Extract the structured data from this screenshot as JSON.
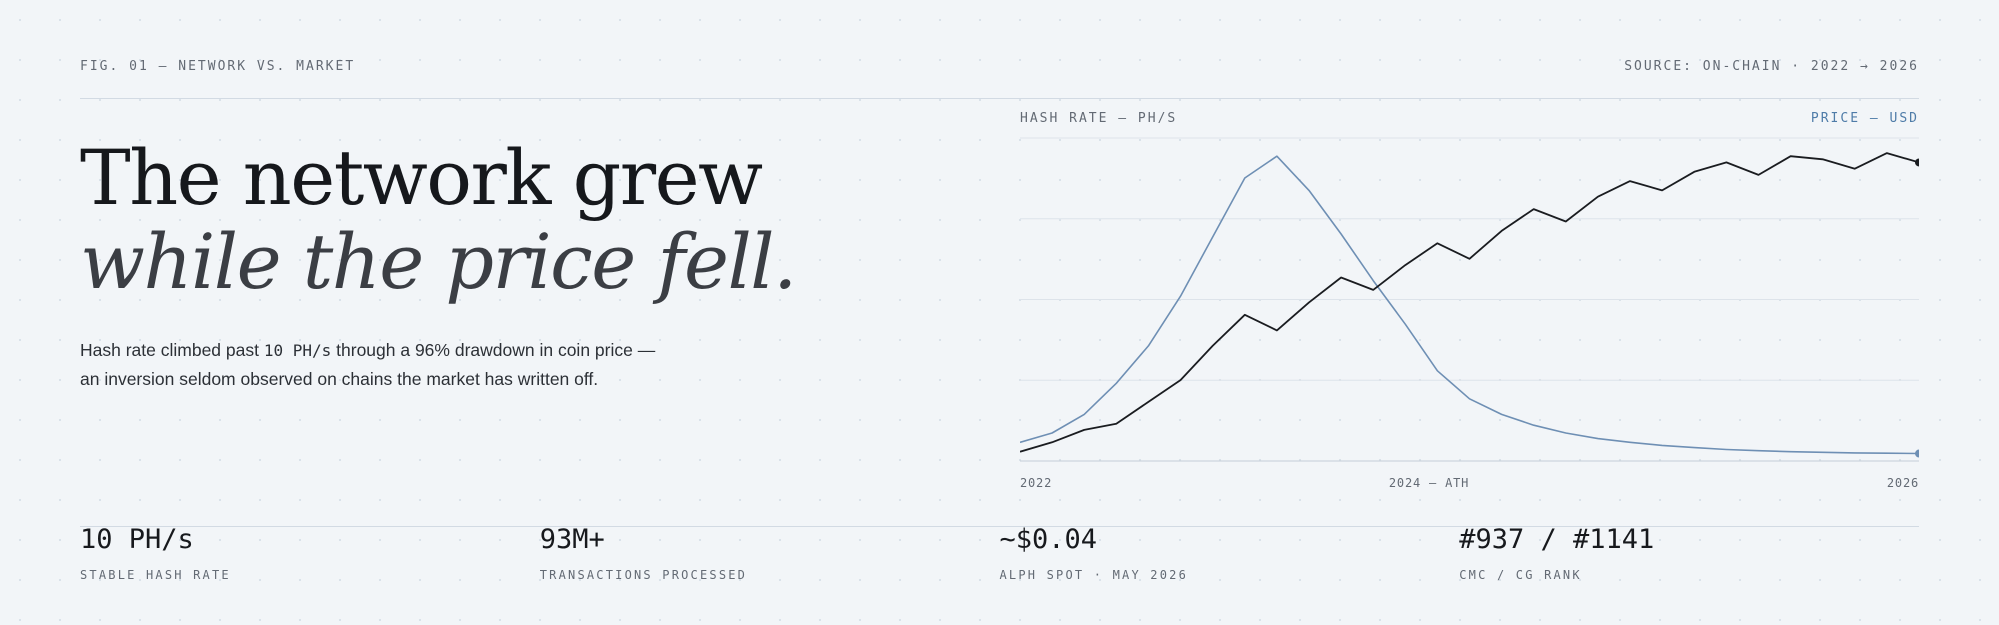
{
  "header": {
    "figure_label": "FIG. 01 — NETWORK VS. MARKET",
    "source_label": "SOURCE: ON-CHAIN · 2022 → 2026"
  },
  "headline": {
    "line1": "The network grew",
    "line2": "while the price fell."
  },
  "lede": {
    "part1": "Hash rate climbed past ",
    "highlight": "10 PH/s",
    "part2": " through a 96% drawdown in coin price — an inversion seldom observed on chains the market has written off."
  },
  "chart_data": {
    "type": "line",
    "left_axis_label": "HASH RATE — PH/S",
    "right_axis_label": "PRICE — USD",
    "x_tick_labels": [
      "2022",
      "2024 — ATH",
      "2026"
    ],
    "x": [
      0,
      1,
      2,
      3,
      4,
      5,
      6,
      7,
      8,
      9,
      10,
      11,
      12,
      13,
      14,
      15,
      16,
      17,
      18,
      19,
      20,
      21,
      22,
      23,
      24,
      25,
      26,
      27,
      28
    ],
    "grid": true,
    "series": [
      {
        "name": "HASH RATE — PH/S",
        "color": "#1a1c20",
        "values": [
          0.3,
          0.6,
          1.0,
          1.2,
          1.9,
          2.6,
          3.7,
          4.7,
          4.2,
          5.1,
          5.9,
          5.5,
          6.3,
          7.0,
          6.5,
          7.4,
          8.1,
          7.7,
          8.5,
          9.0,
          8.7,
          9.3,
          9.6,
          9.2,
          9.8,
          9.7,
          9.4,
          9.9,
          9.6
        ]
      },
      {
        "name": "PRICE — USD",
        "color": "#6e8fb4",
        "values": [
          0.6,
          0.9,
          1.5,
          2.5,
          3.7,
          5.3,
          7.2,
          9.1,
          9.8,
          8.7,
          7.3,
          5.8,
          4.4,
          2.9,
          2.0,
          1.5,
          1.15,
          0.9,
          0.72,
          0.6,
          0.5,
          0.43,
          0.37,
          0.33,
          0.3,
          0.28,
          0.26,
          0.25,
          0.24
        ]
      }
    ]
  },
  "stats": [
    {
      "value": "10 PH/s",
      "label": "STABLE HASH RATE"
    },
    {
      "value": "93M+",
      "label": "TRANSACTIONS PROCESSED"
    },
    {
      "value": "~$0.04",
      "label": "ALPH SPOT · MAY 2026"
    },
    {
      "value": "#937 / #1141",
      "label": "CMC / CG RANK"
    }
  ]
}
